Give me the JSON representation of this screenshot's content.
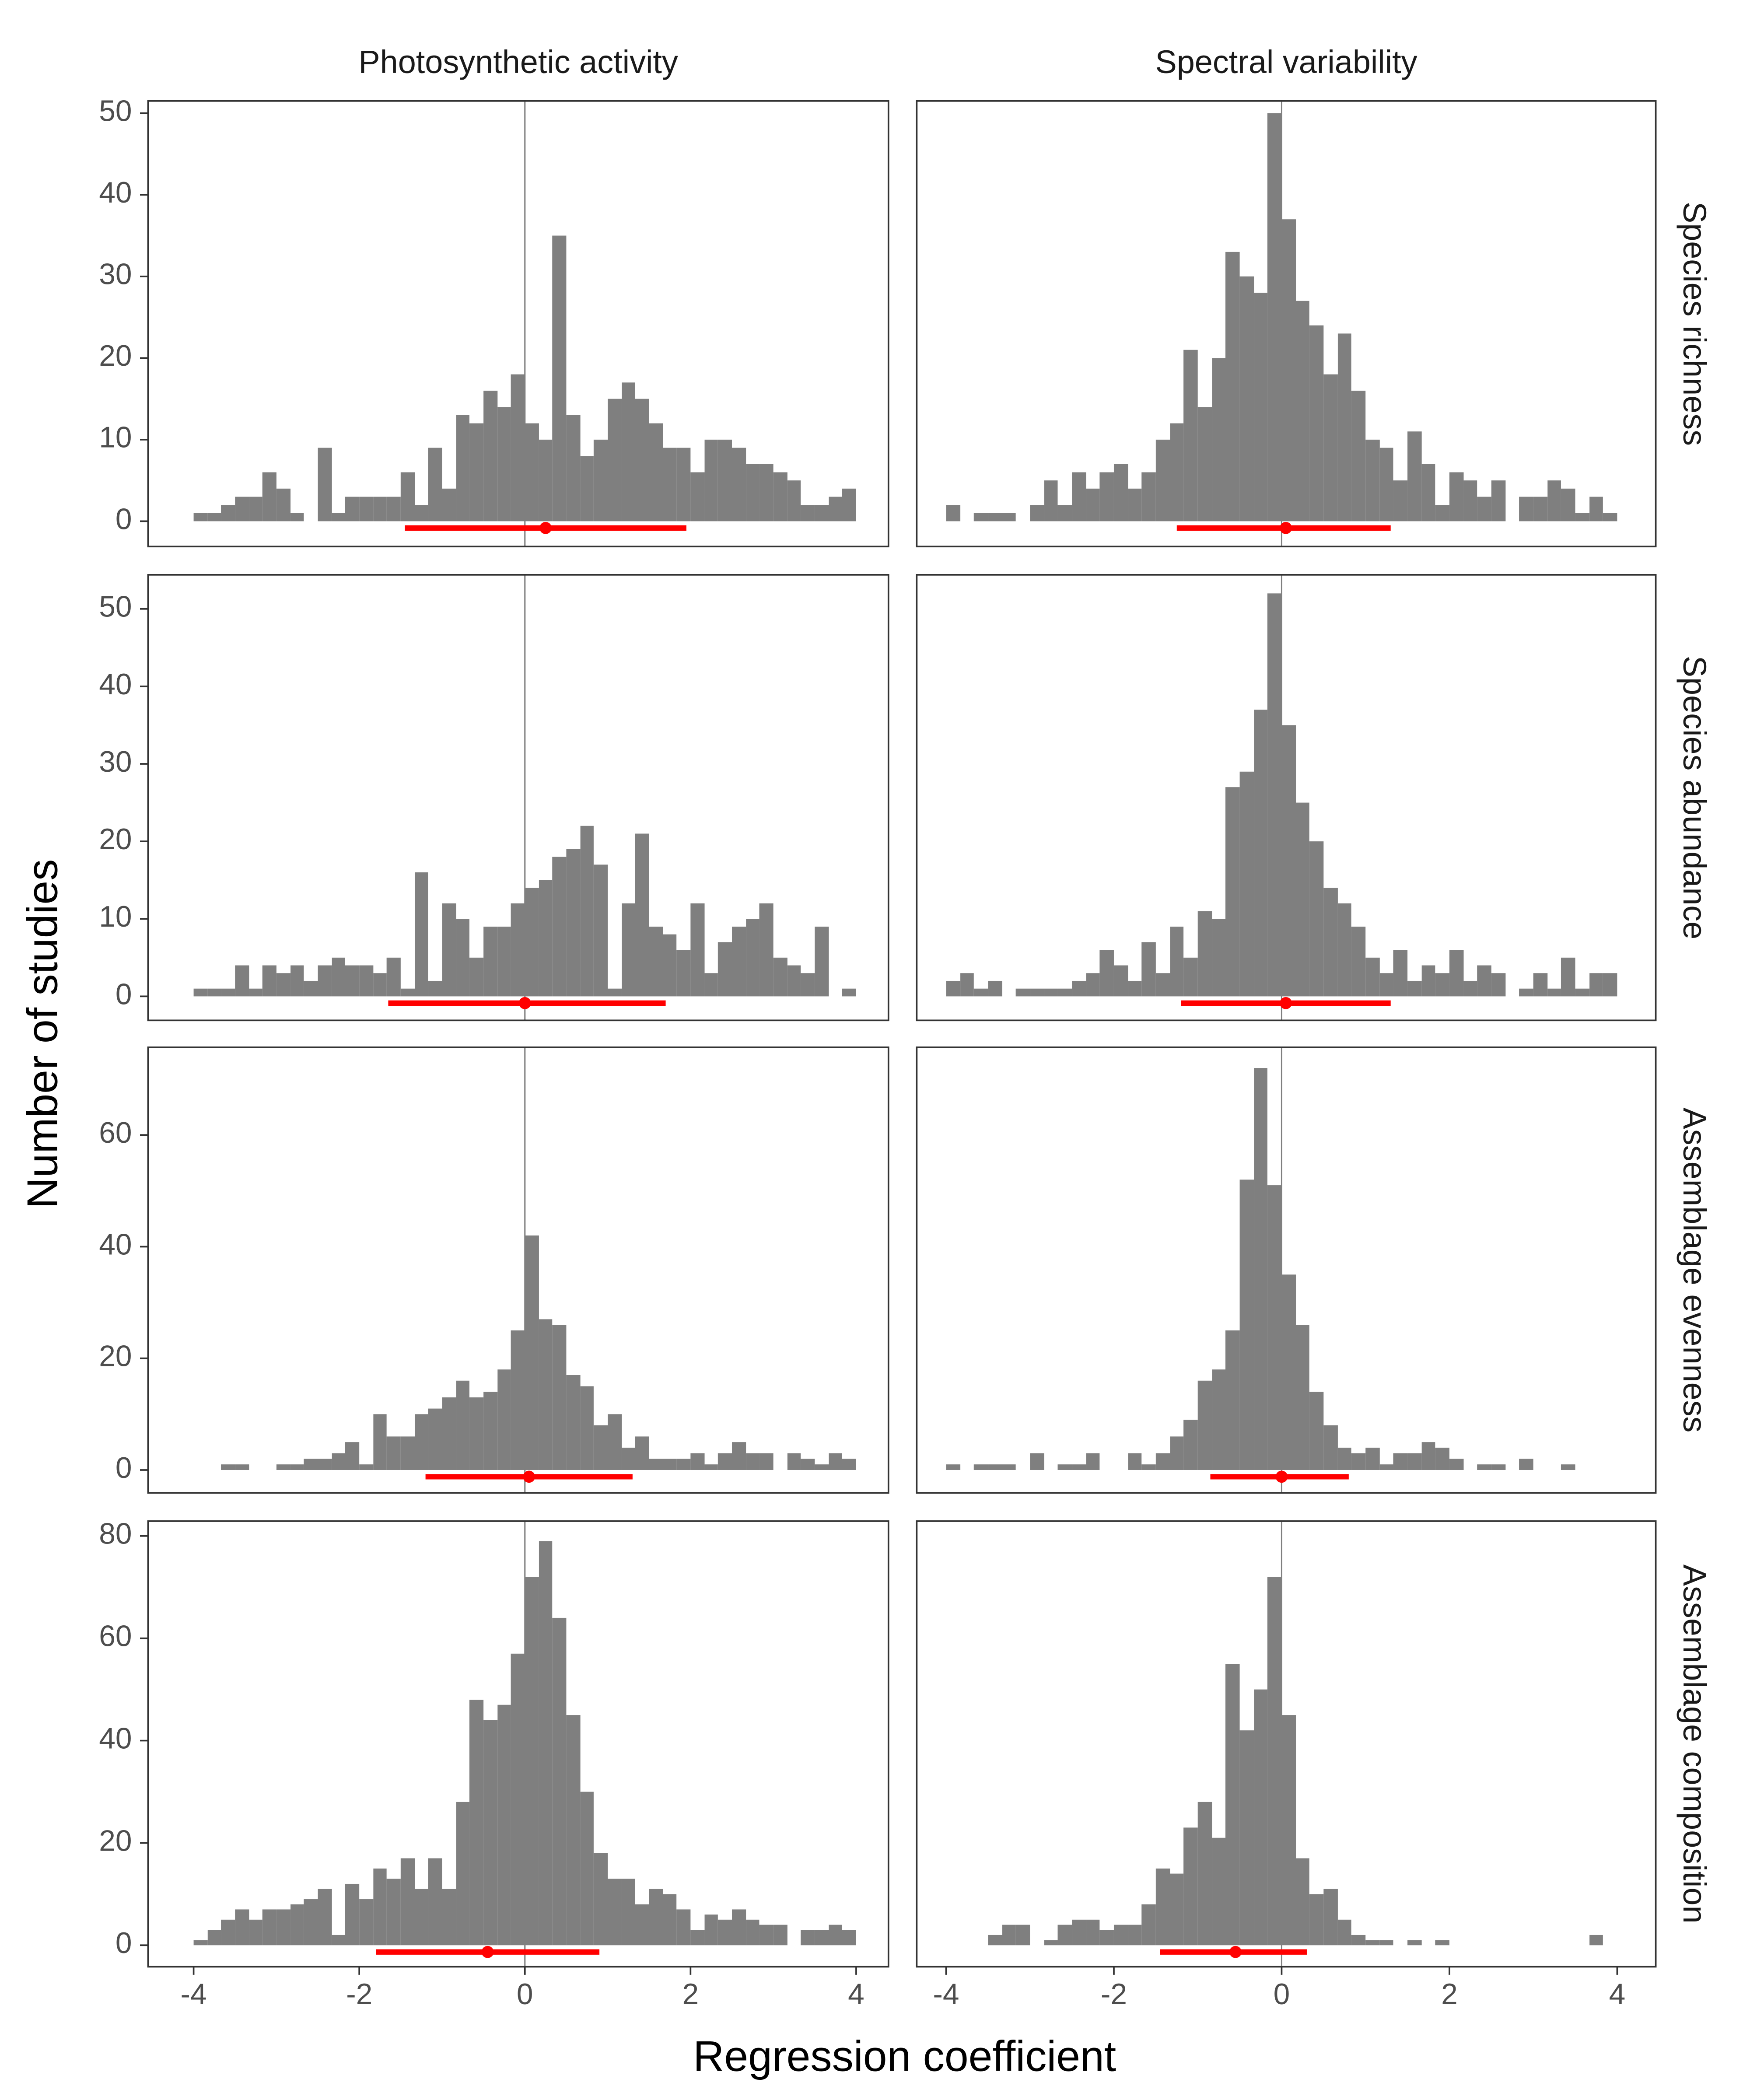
{
  "xlabel": "Regression coefficient",
  "ylabel": "Number of studies",
  "chart_data": [
    {
      "type": "histogram",
      "column": "Photosynthetic activity",
      "color": "#7f7f7f",
      "interval_color": "#ff0000",
      "bins": [
        -4,
        -3.83,
        -3.67,
        -3.5,
        -3.33,
        -3.17,
        -3,
        -2.83,
        -2.67,
        -2.5,
        -2.33,
        -2.17,
        -2,
        -1.83,
        -1.67,
        -1.5,
        -1.33,
        -1.17,
        -1,
        -0.83,
        -0.67,
        -0.5,
        -0.33,
        -0.17,
        0,
        0.17,
        0.33,
        0.5,
        0.67,
        0.83,
        1,
        1.17,
        1.33,
        1.5,
        1.67,
        1.83,
        2,
        2.17,
        2.33,
        2.5,
        2.67,
        2.83,
        3,
        3.17,
        3.33,
        3.5,
        3.67,
        3.83,
        4
      ],
      "values": [
        1,
        1,
        2,
        3,
        3,
        6,
        4,
        1,
        0,
        9,
        1,
        3,
        3,
        3,
        3,
        6,
        2,
        9,
        4,
        13,
        12,
        16,
        14,
        18,
        12,
        10,
        35,
        13,
        8,
        10,
        15,
        17,
        15,
        12,
        9,
        9,
        6,
        10,
        10,
        9,
        7,
        7,
        6,
        5,
        2,
        2,
        3,
        4
      ],
      "mean": 0.25,
      "interval": [
        -1.45,
        1.95
      ],
      "vline": 0,
      "xlim": [
        -4.55,
        4.39
      ],
      "ylim": [
        -3.1,
        51.5
      ],
      "yticks": [
        0,
        10,
        20,
        30,
        40,
        50
      ]
    },
    {
      "type": "histogram",
      "column": "Spectral variability",
      "row": "Species richness",
      "color": "#7f7f7f",
      "interval_color": "#ff0000",
      "bins": [
        -4,
        -3.83,
        -3.67,
        -3.5,
        -3.33,
        -3.17,
        -3,
        -2.83,
        -2.67,
        -2.5,
        -2.33,
        -2.17,
        -2,
        -1.83,
        -1.67,
        -1.5,
        -1.33,
        -1.17,
        -1,
        -0.83,
        -0.67,
        -0.5,
        -0.33,
        -0.17,
        0,
        0.17,
        0.33,
        0.5,
        0.67,
        0.83,
        1,
        1.17,
        1.33,
        1.5,
        1.67,
        1.83,
        2,
        2.17,
        2.33,
        2.5,
        2.67,
        2.83,
        3,
        3.17,
        3.33,
        3.5,
        3.67,
        3.83,
        4
      ],
      "values": [
        2,
        0,
        1,
        1,
        1,
        0,
        2,
        5,
        2,
        6,
        4,
        6,
        7,
        4,
        6,
        10,
        12,
        21,
        14,
        20,
        33,
        30,
        28,
        50,
        37,
        27,
        24,
        18,
        23,
        16,
        10,
        9,
        5,
        11,
        7,
        2,
        6,
        5,
        3,
        5,
        0,
        3,
        3,
        5,
        4,
        1,
        3,
        1
      ],
      "mean": 0.05,
      "interval": [
        -1.25,
        1.3
      ],
      "vline": 0,
      "xlim": [
        -4.35,
        4.46
      ],
      "ylim": [
        -3.1,
        51.5
      ]
    },
    {
      "type": "histogram",
      "color": "#7f7f7f",
      "interval_color": "#ff0000",
      "bins": [
        -4,
        -3.83,
        -3.67,
        -3.5,
        -3.33,
        -3.17,
        -3,
        -2.83,
        -2.67,
        -2.5,
        -2.33,
        -2.17,
        -2,
        -1.83,
        -1.67,
        -1.5,
        -1.33,
        -1.17,
        -1,
        -0.83,
        -0.67,
        -0.5,
        -0.33,
        -0.17,
        0,
        0.17,
        0.33,
        0.5,
        0.67,
        0.83,
        1,
        1.17,
        1.33,
        1.5,
        1.67,
        1.83,
        2,
        2.17,
        2.33,
        2.5,
        2.67,
        2.83,
        3,
        3.17,
        3.33,
        3.5,
        3.67,
        3.83,
        4
      ],
      "values": [
        1,
        1,
        1,
        4,
        1,
        4,
        3,
        4,
        2,
        4,
        5,
        4,
        4,
        3,
        5,
        1,
        16,
        2,
        12,
        10,
        5,
        9,
        9,
        12,
        14,
        15,
        18,
        19,
        22,
        17,
        1,
        12,
        21,
        9,
        8,
        6,
        12,
        3,
        7,
        9,
        10,
        12,
        5,
        4,
        3,
        9,
        0,
        1
      ],
      "mean": 0,
      "interval": [
        -1.65,
        1.7
      ],
      "vline": 0,
      "xlim": [
        -4.55,
        4.39
      ],
      "ylim": [
        -3.1,
        54.4
      ],
      "yticks": [
        0,
        10,
        20,
        30,
        40,
        50
      ]
    },
    {
      "type": "histogram",
      "row": "Species abundance",
      "color": "#7f7f7f",
      "interval_color": "#ff0000",
      "bins": [
        -4,
        -3.83,
        -3.67,
        -3.5,
        -3.33,
        -3.17,
        -3,
        -2.83,
        -2.67,
        -2.5,
        -2.33,
        -2.17,
        -2,
        -1.83,
        -1.67,
        -1.5,
        -1.33,
        -1.17,
        -1,
        -0.83,
        -0.67,
        -0.5,
        -0.33,
        -0.17,
        0,
        0.17,
        0.33,
        0.5,
        0.67,
        0.83,
        1,
        1.17,
        1.33,
        1.5,
        1.67,
        1.83,
        2,
        2.17,
        2.33,
        2.5,
        2.67,
        2.83,
        3,
        3.17,
        3.33,
        3.5,
        3.67,
        3.83,
        4
      ],
      "values": [
        2,
        3,
        1,
        2,
        0,
        1,
        1,
        1,
        1,
        2,
        3,
        6,
        4,
        2,
        7,
        3,
        9,
        5,
        11,
        10,
        27,
        29,
        37,
        52,
        35,
        25,
        20,
        14,
        12,
        9,
        5,
        3,
        6,
        2,
        4,
        3,
        6,
        2,
        4,
        3,
        0,
        1,
        3,
        1,
        5,
        1,
        3,
        3
      ],
      "mean": 0.05,
      "interval": [
        -1.2,
        1.3
      ],
      "vline": 0,
      "xlim": [
        -4.35,
        4.46
      ],
      "ylim": [
        -3.1,
        54.4
      ]
    },
    {
      "type": "histogram",
      "color": "#7f7f7f",
      "interval_color": "#ff0000",
      "bins": [
        -4,
        -3.83,
        -3.67,
        -3.5,
        -3.33,
        -3.17,
        -3,
        -2.83,
        -2.67,
        -2.5,
        -2.33,
        -2.17,
        -2,
        -1.83,
        -1.67,
        -1.5,
        -1.33,
        -1.17,
        -1,
        -0.83,
        -0.67,
        -0.5,
        -0.33,
        -0.17,
        0,
        0.17,
        0.33,
        0.5,
        0.67,
        0.83,
        1,
        1.17,
        1.33,
        1.5,
        1.67,
        1.83,
        2,
        2.17,
        2.33,
        2.5,
        2.67,
        2.83,
        3,
        3.17,
        3.33,
        3.5,
        3.67,
        3.83,
        4
      ],
      "values": [
        0,
        0,
        1,
        1,
        0,
        0,
        1,
        1,
        2,
        2,
        3,
        5,
        1,
        10,
        6,
        6,
        10,
        11,
        13,
        16,
        13,
        14,
        18,
        25,
        42,
        27,
        26,
        17,
        15,
        8,
        10,
        4,
        6,
        2,
        2,
        2,
        3,
        1,
        3,
        5,
        3,
        3,
        0,
        3,
        2,
        1,
        3,
        2
      ],
      "mean": 0.05,
      "interval": [
        -1.2,
        1.3
      ],
      "vline": 0,
      "xlim": [
        -4.55,
        4.39
      ],
      "ylim": [
        -4.1,
        75.7
      ],
      "yticks": [
        0,
        20,
        40,
        60
      ]
    },
    {
      "type": "histogram",
      "row": "Assemblage evenness",
      "color": "#7f7f7f",
      "interval_color": "#ff0000",
      "bins": [
        -4,
        -3.83,
        -3.67,
        -3.5,
        -3.33,
        -3.17,
        -3,
        -2.83,
        -2.67,
        -2.5,
        -2.33,
        -2.17,
        -2,
        -1.83,
        -1.67,
        -1.5,
        -1.33,
        -1.17,
        -1,
        -0.83,
        -0.67,
        -0.5,
        -0.33,
        -0.17,
        0,
        0.17,
        0.33,
        0.5,
        0.67,
        0.83,
        1,
        1.17,
        1.33,
        1.5,
        1.67,
        1.83,
        2,
        2.17,
        2.33,
        2.5,
        2.67,
        2.83,
        3,
        3.17,
        3.33,
        3.5,
        3.67,
        3.83,
        4
      ],
      "values": [
        1,
        0,
        1,
        1,
        1,
        0,
        3,
        0,
        1,
        1,
        3,
        0,
        0,
        3,
        1,
        3,
        6,
        9,
        16,
        18,
        25,
        52,
        72,
        51,
        35,
        26,
        14,
        8,
        4,
        3,
        4,
        1,
        3,
        3,
        5,
        4,
        2,
        0,
        1,
        1,
        0,
        2,
        0,
        0,
        1,
        0,
        0,
        0
      ],
      "mean": 0,
      "interval": [
        -0.85,
        0.8
      ],
      "vline": 0,
      "xlim": [
        -4.35,
        4.46
      ],
      "ylim": [
        -4.1,
        75.7
      ]
    },
    {
      "type": "histogram",
      "color": "#7f7f7f",
      "interval_color": "#ff0000",
      "bins": [
        -4,
        -3.83,
        -3.67,
        -3.5,
        -3.33,
        -3.17,
        -3,
        -2.83,
        -2.67,
        -2.5,
        -2.33,
        -2.17,
        -2,
        -1.83,
        -1.67,
        -1.5,
        -1.33,
        -1.17,
        -1,
        -0.83,
        -0.67,
        -0.5,
        -0.33,
        -0.17,
        0,
        0.17,
        0.33,
        0.5,
        0.67,
        0.83,
        1,
        1.17,
        1.33,
        1.5,
        1.67,
        1.83,
        2,
        2.17,
        2.33,
        2.5,
        2.67,
        2.83,
        3,
        3.17,
        3.33,
        3.5,
        3.67,
        3.83,
        4
      ],
      "values": [
        1,
        3,
        5,
        7,
        5,
        7,
        7,
        8,
        9,
        11,
        2,
        12,
        9,
        15,
        13,
        17,
        11,
        17,
        11,
        28,
        48,
        44,
        47,
        57,
        72,
        79,
        64,
        45,
        30,
        18,
        13,
        13,
        8,
        11,
        10,
        7,
        3,
        6,
        5,
        7,
        5,
        4,
        4,
        0,
        3,
        3,
        4,
        3
      ],
      "mean": -0.45,
      "interval": [
        -1.8,
        0.9
      ],
      "vline": 0,
      "xlim": [
        -4.55,
        4.39
      ],
      "ylim": [
        -4.2,
        82.9
      ],
      "yticks": [
        0,
        20,
        40,
        60,
        80
      ],
      "xticks": [
        -4,
        -2,
        0,
        2,
        4
      ]
    },
    {
      "type": "histogram",
      "row": "Assemblage composition",
      "color": "#7f7f7f",
      "interval_color": "#ff0000",
      "bins": [
        -4,
        -3.83,
        -3.67,
        -3.5,
        -3.33,
        -3.17,
        -3,
        -2.83,
        -2.67,
        -2.5,
        -2.33,
        -2.17,
        -2,
        -1.83,
        -1.67,
        -1.5,
        -1.33,
        -1.17,
        -1,
        -0.83,
        -0.67,
        -0.5,
        -0.33,
        -0.17,
        0,
        0.17,
        0.33,
        0.5,
        0.67,
        0.83,
        1,
        1.17,
        1.33,
        1.5,
        1.67,
        1.83,
        2,
        2.17,
        2.33,
        2.5,
        2.67,
        2.83,
        3,
        3.17,
        3.33,
        3.5,
        3.67,
        3.83,
        4
      ],
      "values": [
        0,
        0,
        0,
        2,
        4,
        4,
        0,
        1,
        4,
        5,
        5,
        3,
        4,
        4,
        8,
        15,
        14,
        23,
        28,
        21,
        55,
        42,
        50,
        72,
        45,
        17,
        10,
        11,
        5,
        2,
        1,
        1,
        0,
        1,
        0,
        1,
        0,
        0,
        0,
        0,
        0,
        0,
        0,
        0,
        0,
        0,
        2,
        0
      ],
      "mean": -0.55,
      "interval": [
        -1.45,
        0.3
      ],
      "vline": 0,
      "xlim": [
        -4.35,
        4.46
      ],
      "ylim": [
        -4.2,
        82.9
      ],
      "xticks": [
        -4,
        -2,
        0,
        2,
        4
      ]
    }
  ]
}
